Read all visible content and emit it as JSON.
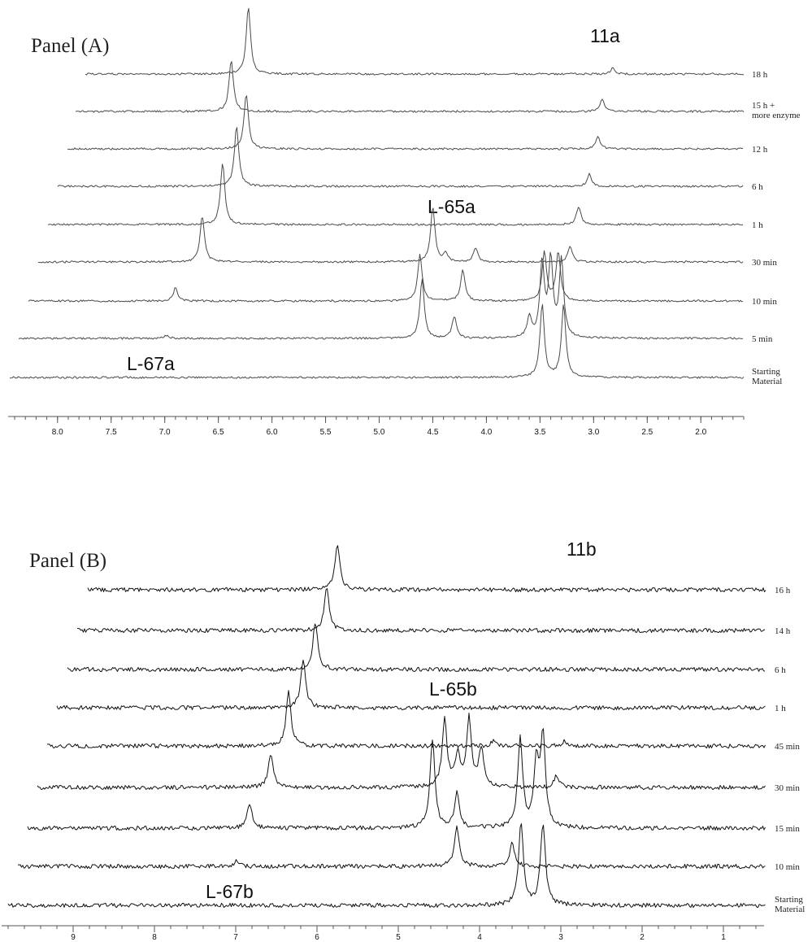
{
  "chart_data": [
    {
      "type": "line",
      "title": "Panel (A)",
      "xlim": [
        8.4,
        1.6
      ],
      "ticks": [
        "8.0",
        "7.5",
        "7.0",
        "6.5",
        "6.0",
        "5.5",
        "5.0",
        "4.5",
        "4.0",
        "3.5",
        "3.0",
        "2.5",
        "2.0"
      ],
      "tick_values": [
        8.0,
        7.5,
        7.0,
        6.5,
        6.0,
        5.5,
        5.0,
        4.5,
        4.0,
        3.5,
        3.0,
        2.5,
        2.0
      ],
      "annotations": [
        {
          "text": "11a"
        },
        {
          "text": "L-65a"
        },
        {
          "text": "L-67a"
        }
      ],
      "series": [
        {
          "name": "18 h",
          "peaks": [
            [
              6.22,
              82
            ],
            [
              2.82,
              8
            ]
          ]
        },
        {
          "name": "15 h + more enzyme",
          "peaks": [
            [
              6.38,
              62
            ],
            [
              2.92,
              16
            ]
          ]
        },
        {
          "name": "12 h",
          "peaks": [
            [
              6.24,
              68
            ],
            [
              2.96,
              16
            ]
          ]
        },
        {
          "name": "6 h",
          "peaks": [
            [
              6.33,
              74
            ],
            [
              3.04,
              15
            ]
          ]
        },
        {
          "name": "1 h",
          "peaks": [
            [
              6.46,
              75
            ],
            [
              3.14,
              22
            ]
          ]
        },
        {
          "name": "30 min",
          "peaks": [
            [
              6.65,
              57
            ],
            [
              4.5,
              68
            ],
            [
              4.38,
              10
            ],
            [
              4.1,
              17
            ],
            [
              3.22,
              20
            ]
          ]
        },
        {
          "name": "10 min",
          "peaks": [
            [
              6.9,
              16
            ],
            [
              4.62,
              57
            ],
            [
              4.22,
              38
            ],
            [
              3.46,
              60
            ],
            [
              3.33,
              60
            ]
          ]
        },
        {
          "name": "5 min",
          "peaks": [
            [
              6.98,
              4
            ],
            [
              4.6,
              73
            ],
            [
              4.3,
              27
            ],
            [
              3.6,
              25
            ],
            [
              3.48,
              92
            ],
            [
              3.4,
              95
            ],
            [
              3.3,
              95
            ]
          ]
        },
        {
          "name": "Starting Material",
          "peaks": [
            [
              3.48,
              90
            ],
            [
              3.28,
              90
            ]
          ]
        }
      ]
    },
    {
      "type": "line",
      "title": "Panel (B)",
      "xlim": [
        9.8,
        0.5
      ],
      "ticks": [
        "9",
        "8",
        "7",
        "6",
        "5",
        "4",
        "3",
        "2",
        "1"
      ],
      "tick_values": [
        9,
        8,
        7,
        6,
        5,
        4,
        3,
        2,
        1
      ],
      "annotations": [
        {
          "text": "11b"
        },
        {
          "text": "L-65b"
        },
        {
          "text": "L-67b"
        }
      ],
      "series": [
        {
          "name": "16 h",
          "peaks": [
            [
              5.75,
              55
            ]
          ]
        },
        {
          "name": "14 h",
          "peaks": [
            [
              5.88,
              52
            ]
          ]
        },
        {
          "name": "6 h",
          "peaks": [
            [
              6.02,
              58
            ]
          ]
        },
        {
          "name": "1 h",
          "peaks": [
            [
              6.17,
              58
            ]
          ]
        },
        {
          "name": "45 min",
          "peaks": [
            [
              6.35,
              66
            ],
            [
              3.82,
              8
            ],
            [
              2.95,
              6
            ]
          ]
        },
        {
          "name": "30 min",
          "peaks": [
            [
              6.57,
              42
            ],
            [
              4.43,
              83
            ],
            [
              4.27,
              37
            ],
            [
              4.13,
              83
            ],
            [
              3.98,
              47
            ],
            [
              3.05,
              15
            ]
          ]
        },
        {
          "name": "15 min",
          "peaks": [
            [
              6.83,
              30
            ],
            [
              4.58,
              109
            ],
            [
              4.28,
              42
            ],
            [
              3.5,
              109
            ],
            [
              3.3,
              75
            ],
            [
              3.22,
              110
            ]
          ]
        },
        {
          "name": "10 min",
          "peaks": [
            [
              6.99,
              6
            ],
            [
              4.28,
              50
            ],
            [
              3.6,
              28
            ]
          ]
        },
        {
          "name": "Starting Material",
          "peaks": [
            [
              3.49,
              100
            ],
            [
              3.22,
              100
            ]
          ]
        }
      ]
    }
  ]
}
